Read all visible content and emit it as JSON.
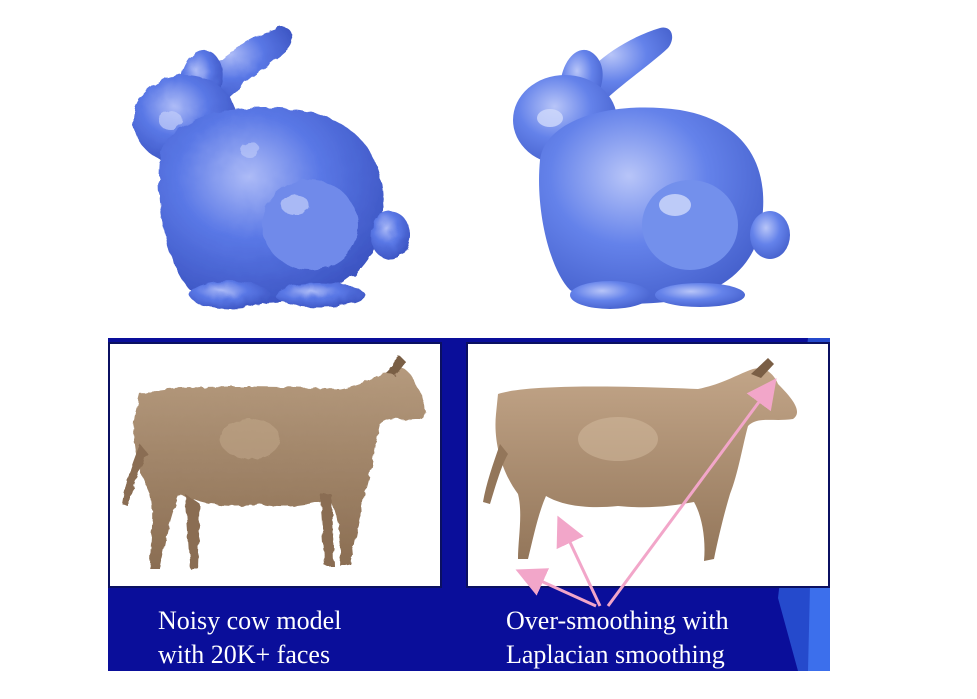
{
  "colors": {
    "bunny_fill": "#5a78e6",
    "bunny_highlight": "#aebcf7",
    "bunny_shadow": "#3a52c0",
    "cow_fill": "#a5886c",
    "cow_shadow": "#6e5640",
    "panel_bg": "#0a0e9a",
    "arrow": "#f2a6c9"
  },
  "figures": {
    "bunny_noisy": {
      "icon": "noisy-bunny-icon"
    },
    "bunny_smoothed": {
      "icon": "smoothed-bunny-icon"
    },
    "cow_noisy": {
      "icon": "noisy-cow-icon"
    },
    "cow_smoothed": {
      "icon": "oversmoothed-cow-icon"
    }
  },
  "captions": {
    "left": {
      "line1": "Noisy cow model",
      "line2": "with 20K+ faces"
    },
    "right": {
      "line1": "Over-smoothing with",
      "line2": "Laplacian smoothing"
    }
  }
}
